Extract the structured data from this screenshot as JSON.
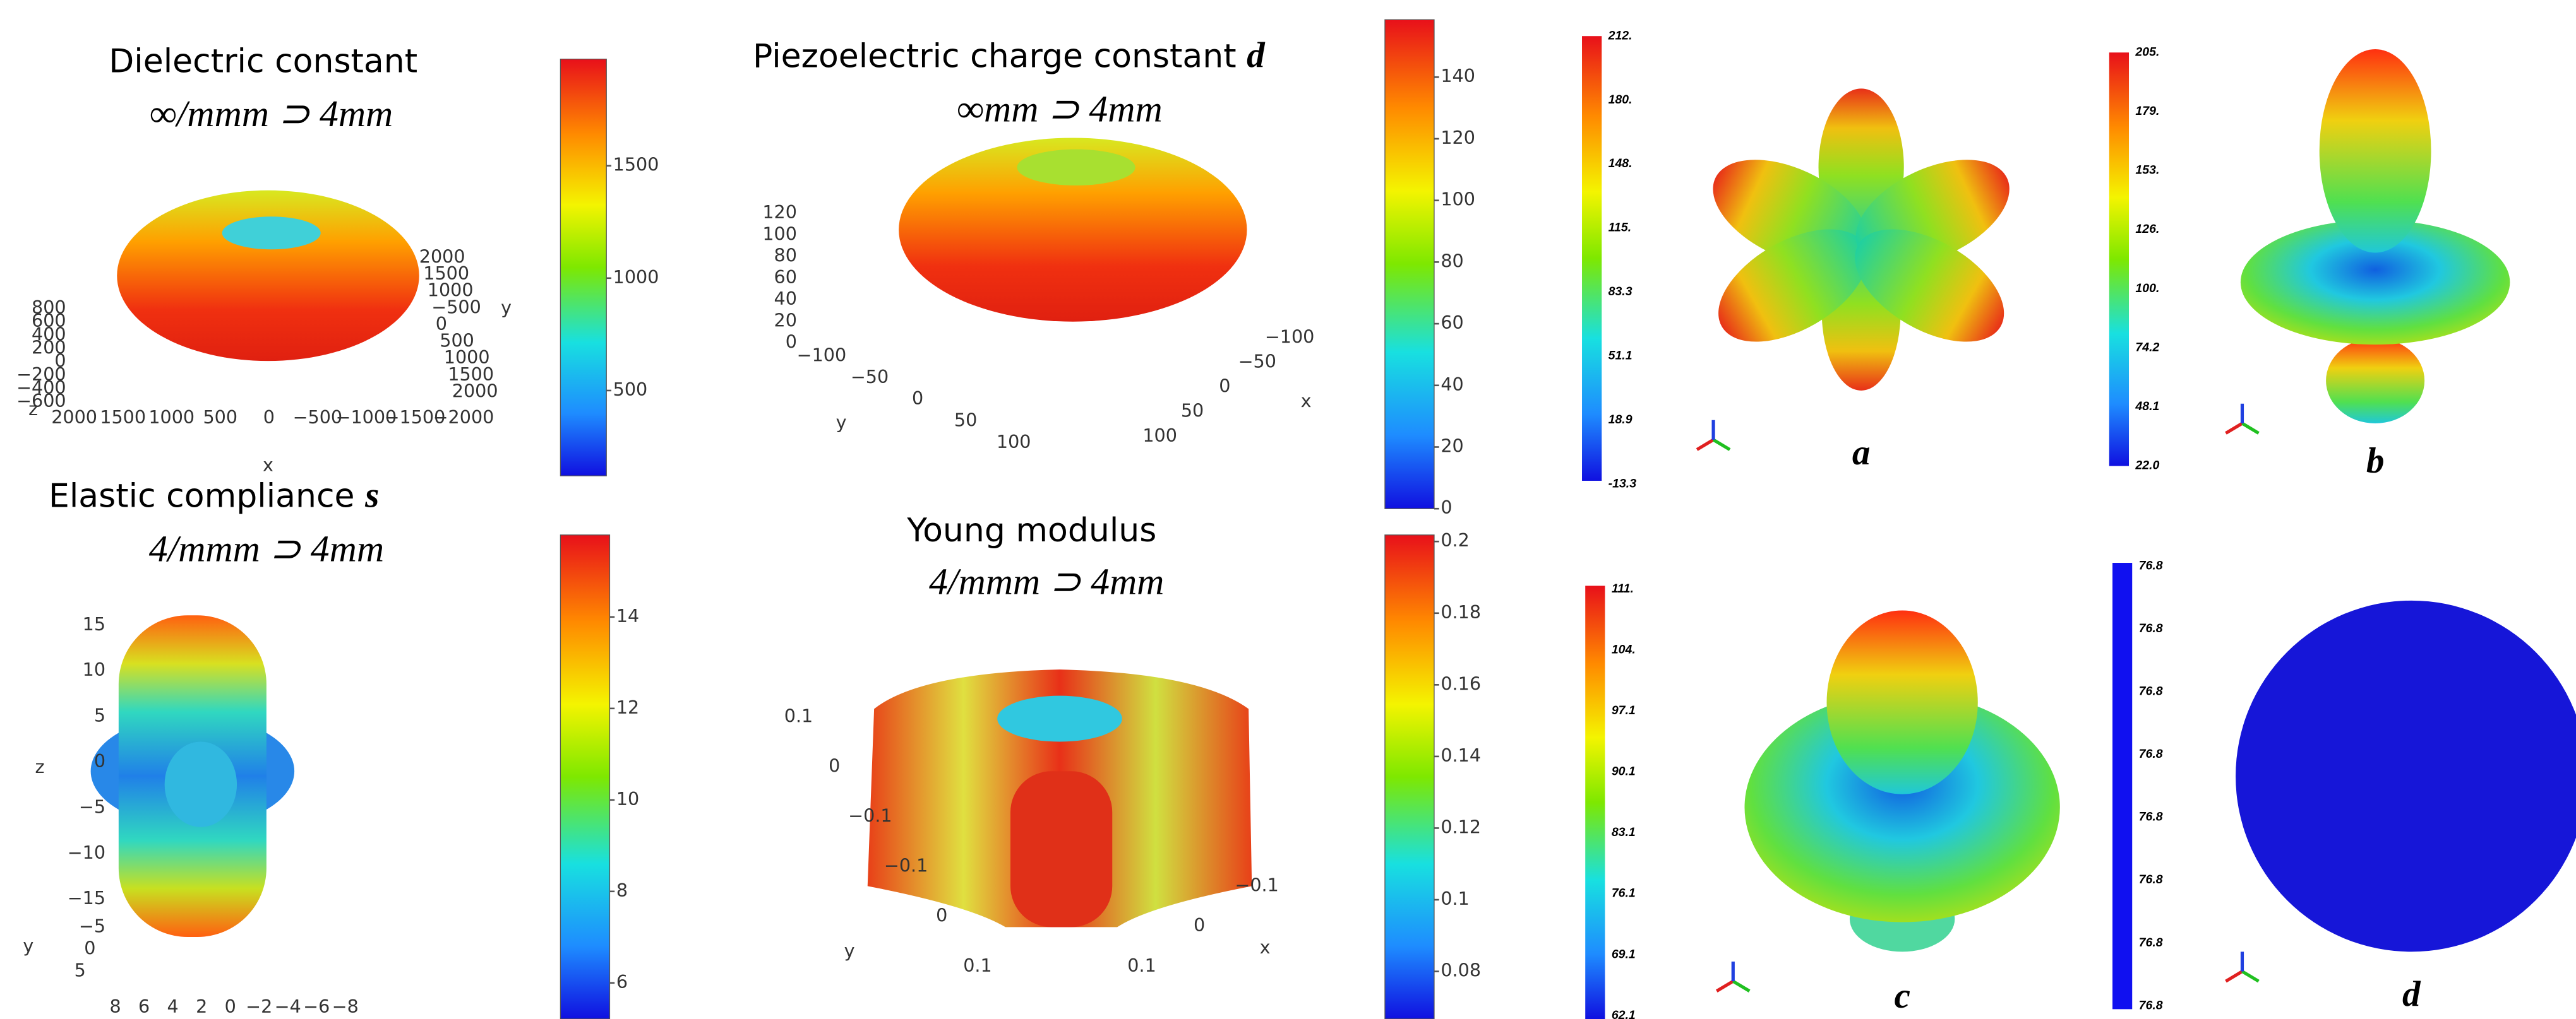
{
  "panels": [
    {
      "title": "Dielectric constant",
      "symmetry": "∞/mmm ⊃ 4mm",
      "colorbar_ticks": [
        "500",
        "1000",
        "1500"
      ],
      "axes": [
        {
          "name": "z",
          "ticks": [
            "800",
            "600",
            "400",
            "200",
            "0",
            "−200",
            "−400",
            "−600"
          ]
        },
        {
          "name": "x",
          "ticks": [
            "2000",
            "1500",
            "1000",
            "500",
            "0",
            "−500",
            "−1000",
            "−1500",
            "−2000"
          ]
        },
        {
          "name": "y",
          "ticks": [
            "2000",
            "1500",
            "1000",
            "−500",
            "0",
            "500",
            "1000",
            "1500",
            "2000"
          ]
        }
      ]
    },
    {
      "title": "Piezoelectric charge constant",
      "symbol": "d",
      "symmetry": "∞mm ⊃ 4mm",
      "colorbar_ticks": [
        "0",
        "20",
        "40",
        "60",
        "80",
        "100",
        "120",
        "140"
      ],
      "axes": [
        {
          "name": "z",
          "ticks": [
            "120",
            "100",
            "80",
            "60",
            "40",
            "20",
            "0"
          ]
        },
        {
          "name": "y",
          "ticks": [
            "−100",
            "−50",
            "0",
            "50",
            "100"
          ]
        },
        {
          "name": "x",
          "ticks": [
            "−100",
            "−50",
            "0",
            "50",
            "100"
          ]
        }
      ]
    },
    {
      "title": "Elastic compliance",
      "symbol": "s",
      "symmetry": "4/mmm ⊃ 4mm",
      "colorbar_ticks": [
        "6",
        "8",
        "10",
        "12",
        "14"
      ],
      "axes": [
        {
          "name": "z",
          "ticks": [
            "15",
            "10",
            "5",
            "0",
            "−5",
            "−10",
            "−15"
          ]
        },
        {
          "name": "y",
          "ticks": [
            "−5",
            "0",
            "5"
          ]
        },
        {
          "name": "x",
          "ticks": [
            "8",
            "6",
            "4",
            "2",
            "0",
            "−2",
            "−4",
            "−6",
            "−8"
          ]
        }
      ]
    },
    {
      "title": "Young modulus",
      "symmetry": "4/mmm ⊃ 4mm",
      "colorbar_ticks": [
        "0.08",
        "0.1",
        "0.12",
        "0.14",
        "0.16",
        "0.18",
        "0.2"
      ],
      "axes": [
        {
          "name": "y",
          "ticks": [
            "0.1",
            "0",
            "−0.1",
            "−0.1",
            "0",
            "0.1"
          ]
        },
        {
          "name": "x",
          "ticks": [
            "−0.1",
            "0",
            "0.1"
          ]
        }
      ]
    }
  ],
  "results": [
    {
      "label": "a",
      "colorbar_ticks": [
        "212.",
        "180.",
        "148.",
        "115.",
        "83.3",
        "51.1",
        "18.9",
        "-13.3"
      ]
    },
    {
      "label": "b",
      "colorbar_ticks": [
        "205.",
        "179.",
        "153.",
        "126.",
        "100.",
        "74.2",
        "48.1",
        "22.0"
      ]
    },
    {
      "label": "c",
      "colorbar_ticks": [
        "111.",
        "104.",
        "97.1",
        "90.1",
        "83.1",
        "76.1",
        "69.1",
        "62.1"
      ]
    },
    {
      "label": "d",
      "colorbar_ticks": [
        "76.8",
        "76.8",
        "76.8",
        "76.8",
        "76.8",
        "76.8",
        "76.8",
        "76.8"
      ]
    }
  ]
}
